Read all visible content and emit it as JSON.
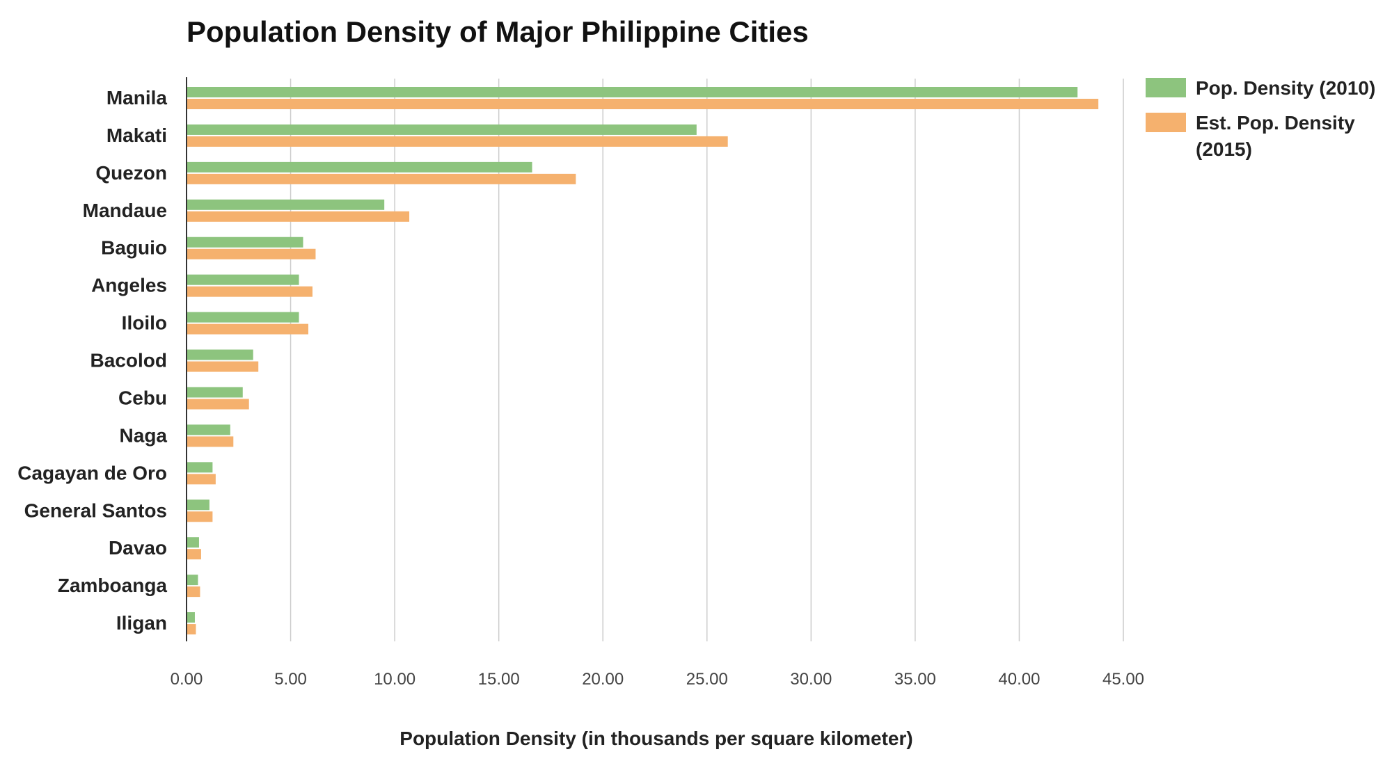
{
  "chart_data": {
    "type": "bar",
    "orientation": "horizontal",
    "title": "Population Density of Major Philippine Cities",
    "xlabel": "Population Density (in thousands per square kilometer)",
    "ylabel": "",
    "xlim": [
      0,
      45
    ],
    "xticks": [
      "0.00",
      "5.00",
      "10.00",
      "15.00",
      "20.00",
      "25.00",
      "30.00",
      "35.00",
      "40.00",
      "45.00"
    ],
    "grid": true,
    "legend_position": "top-right",
    "categories": [
      "Manila",
      "Makati",
      "Quezon",
      "Mandaue",
      "Baguio",
      "Angeles",
      "Iloilo",
      "Bacolod",
      "Cebu",
      "Naga",
      "Cagayan de Oro",
      "General Santos",
      "Davao",
      "Zamboanga",
      "Iligan"
    ],
    "series": [
      {
        "name": "Pop. Density (2010)",
        "color": "#8dc47e",
        "values": [
          42.8,
          24.5,
          16.6,
          9.5,
          5.6,
          5.4,
          5.4,
          3.2,
          2.7,
          2.1,
          1.25,
          1.1,
          0.6,
          0.55,
          0.4
        ]
      },
      {
        "name": "Est. Pop. Density (2015)",
        "color": "#f5b16e",
        "values": [
          43.8,
          26.0,
          18.7,
          10.7,
          6.2,
          6.05,
          5.85,
          3.45,
          3.0,
          2.25,
          1.4,
          1.25,
          0.7,
          0.65,
          0.45
        ]
      }
    ]
  }
}
